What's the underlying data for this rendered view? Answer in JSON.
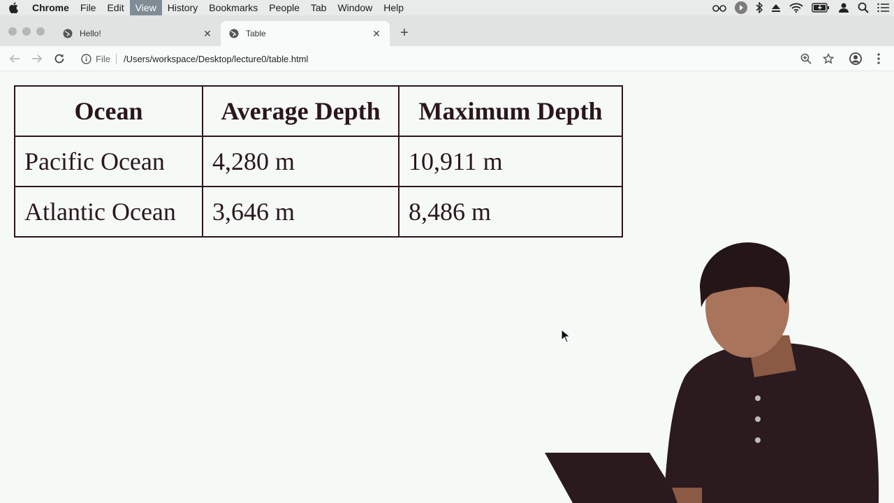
{
  "menubar": {
    "app_name": "Chrome",
    "items": [
      "File",
      "Edit",
      "View",
      "History",
      "Bookmarks",
      "People",
      "Tab",
      "Window",
      "Help"
    ],
    "active_item": "View",
    "status_icons": [
      "glasses-icon",
      "profile-circle-icon",
      "bluetooth-icon",
      "eject-icon",
      "wifi-icon",
      "battery-icon",
      "user-icon",
      "search-icon",
      "list-icon"
    ]
  },
  "tabs": [
    {
      "title": "Hello!",
      "active": false
    },
    {
      "title": "Table",
      "active": true
    }
  ],
  "toolbar": {
    "scheme_label": "File",
    "url": "/Users/workspace/Desktop/lecture0/table.html"
  },
  "table": {
    "headers": [
      "Ocean",
      "Average Depth",
      "Maximum Depth"
    ],
    "rows": [
      [
        "Pacific Ocean",
        "4,280 m",
        "10,911 m"
      ],
      [
        "Atlantic Ocean",
        "3,646 m",
        "8,486 m"
      ]
    ]
  },
  "colors": {
    "page_background": "#f5faf7",
    "table_text": "#2b161c",
    "menu_active": "#7f8c95"
  }
}
